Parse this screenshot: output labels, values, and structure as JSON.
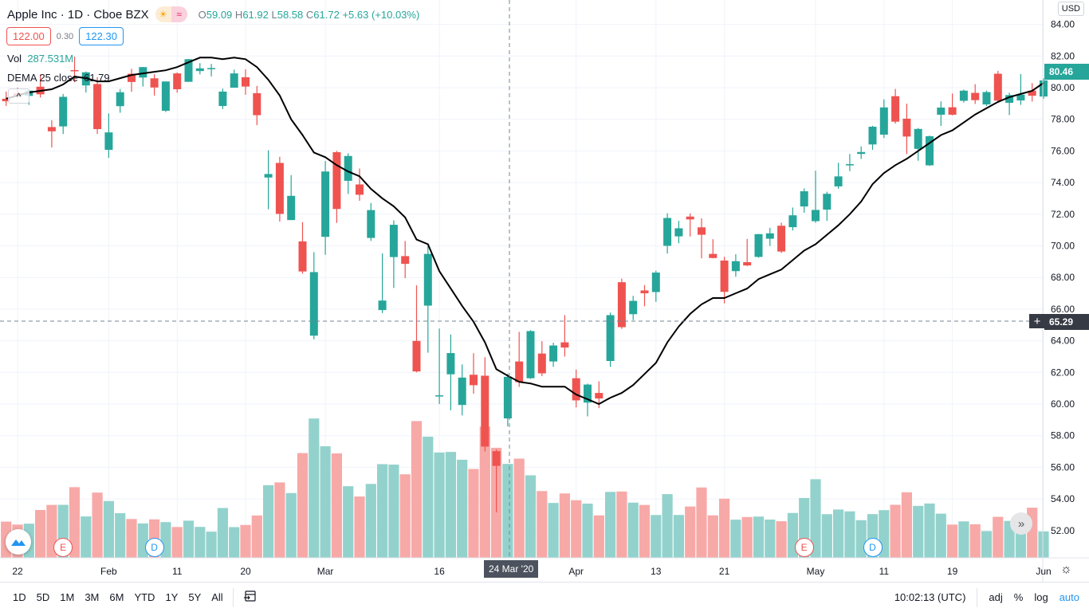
{
  "header": {
    "symbol": "Apple Inc",
    "interval": "1D",
    "exchange": "Cboe BZX",
    "separator": "·",
    "ohlc": {
      "o_label": "O",
      "o": "59.09",
      "h_label": "H",
      "h": "61.92",
      "l_label": "L",
      "l": "58.58",
      "c_label": "C",
      "c": "61.72",
      "change": "+5.63 (+10.03%)"
    },
    "sell_price": "122.00",
    "spread": "0.30",
    "buy_price": "122.30",
    "badge_icons": [
      "sun-icon",
      "wave-icon"
    ],
    "badge_glyphs": [
      "☀",
      "≈"
    ]
  },
  "indicators": {
    "vol_label": "Vol",
    "vol_value": "287.531M",
    "dema_label": "DEMA 25 close",
    "dema_value": "61.79",
    "collapse_glyph": "^"
  },
  "price_axis": {
    "currency": "USD",
    "last_price": "80.46",
    "crosshair_price": "65.29",
    "plus_glyph": "+"
  },
  "time_axis": {
    "crosshair_date": "24 Mar '20"
  },
  "events": [
    {
      "type": "E",
      "date": "2020-01-28"
    },
    {
      "type": "D",
      "date": "2020-02-07"
    },
    {
      "type": "E",
      "date": "2020-04-30"
    },
    {
      "type": "D",
      "date": "2020-05-08"
    }
  ],
  "colors": {
    "up": "#26a69a",
    "down": "#ef5350",
    "up_vol": "#93d2cc",
    "down_vol": "#f7a9a7",
    "dema": "#000000",
    "accent": "#2196f3"
  },
  "toolbar": {
    "ranges": [
      "1D",
      "5D",
      "1M",
      "3M",
      "6M",
      "YTD",
      "1Y",
      "5Y",
      "All"
    ],
    "goto_icon": "calendar-goto-icon",
    "time": "10:02:13 (UTC)",
    "adj": "adj",
    "percent": "%",
    "log": "log",
    "auto": "auto"
  },
  "chart_data": {
    "type": "candlestick",
    "title": "Apple Inc · 1D · Cboe BZX",
    "ylim": [
      50.5,
      84.8
    ],
    "yticks": [
      "52.00",
      "54.00",
      "56.00",
      "58.00",
      "60.00",
      "62.00",
      "64.00",
      "66.00",
      "68.00",
      "70.00",
      "72.00",
      "74.00",
      "76.00",
      "78.00",
      "80.00",
      "82.00",
      "84.00"
    ],
    "xticks": [
      {
        "label": "22",
        "date": "2020-01-22"
      },
      {
        "label": "Feb",
        "date": "2020-02-03"
      },
      {
        "label": "11",
        "date": "2020-02-11"
      },
      {
        "label": "20",
        "date": "2020-02-20"
      },
      {
        "label": "Mar",
        "date": "2020-03-02"
      },
      {
        "label": "16",
        "date": "2020-03-16"
      },
      {
        "label": "Apr",
        "date": "2020-04-01"
      },
      {
        "label": "13",
        "date": "2020-04-13"
      },
      {
        "label": "21",
        "date": "2020-04-21"
      },
      {
        "label": "May",
        "date": "2020-05-01"
      },
      {
        "label": "11",
        "date": "2020-05-11"
      },
      {
        "label": "19",
        "date": "2020-05-19"
      },
      {
        "label": "Jun",
        "date": "2020-06-01"
      }
    ],
    "grid": true,
    "candles": [
      [
        "2020-01-21",
        79.3,
        79.75,
        78.85,
        79.14,
        110.8,
        79.3
      ],
      [
        "2020-01-22",
        79.64,
        80.0,
        79.33,
        79.43,
        101.8,
        79.5
      ],
      [
        "2020-01-23",
        79.48,
        79.89,
        78.91,
        79.81,
        104.5,
        79.7
      ],
      [
        "2020-01-24",
        80.06,
        80.83,
        79.38,
        79.58,
        146.5,
        79.8
      ],
      [
        "2020-01-27",
        77.51,
        77.94,
        76.22,
        77.24,
        161.9,
        79.9
      ],
      [
        "2020-01-28",
        77.55,
        79.6,
        77.07,
        79.42,
        162.2,
        80.2
      ],
      [
        "2020-01-29",
        81.11,
        81.96,
        80.35,
        81.08,
        216.2,
        80.7
      ],
      [
        "2020-01-30",
        80.14,
        81.02,
        79.69,
        80.97,
        126.7,
        80.6
      ],
      [
        "2020-01-31",
        80.23,
        80.67,
        77.07,
        77.38,
        199.6,
        80.4
      ],
      [
        "2020-02-03",
        76.07,
        78.37,
        75.56,
        77.17,
        173.8,
        80.4
      ],
      [
        "2020-02-04",
        78.83,
        79.91,
        78.41,
        79.71,
        136.6,
        80.6
      ],
      [
        "2020-02-05",
        80.88,
        81.19,
        79.74,
        80.36,
        118.8,
        80.8
      ],
      [
        "2020-02-06",
        80.64,
        81.31,
        80.07,
        81.3,
        105.4,
        80.9
      ],
      [
        "2020-02-07",
        80.59,
        80.85,
        79.5,
        80.01,
        117.7,
        81.0
      ],
      [
        "2020-02-10",
        78.54,
        80.39,
        78.46,
        80.39,
        109.3,
        81.1
      ],
      [
        "2020-02-11",
        80.9,
        80.97,
        79.68,
        79.9,
        94.3,
        81.3
      ],
      [
        "2020-02-12",
        80.37,
        81.81,
        80.37,
        81.8,
        113.7,
        81.6
      ],
      [
        "2020-02-13",
        81.05,
        81.55,
        80.84,
        81.22,
        94.7,
        81.9
      ],
      [
        "2020-02-14",
        81.18,
        81.5,
        80.71,
        81.24,
        80.1,
        81.9
      ],
      [
        "2020-02-18",
        78.84,
        79.94,
        78.65,
        79.75,
        152.5,
        81.8
      ],
      [
        "2020-02-19",
        80.0,
        81.14,
        80.0,
        80.9,
        94.0,
        81.9
      ],
      [
        "2020-02-20",
        80.66,
        81.16,
        79.55,
        80.07,
        100.6,
        81.8
      ],
      [
        "2020-02-21",
        79.65,
        80.11,
        77.63,
        78.26,
        129.6,
        81.3
      ],
      [
        "2020-02-24",
        74.32,
        76.04,
        72.31,
        74.54,
        222.2,
        80.5
      ],
      [
        "2020-02-25",
        75.24,
        75.63,
        71.53,
        72.02,
        230.7,
        79.5
      ],
      [
        "2020-02-26",
        71.63,
        74.47,
        71.63,
        73.16,
        198.2,
        78.0
      ],
      [
        "2020-02-27",
        70.28,
        71.5,
        68.24,
        68.38,
        320.6,
        77.0
      ],
      [
        "2020-02-28",
        64.32,
        69.6,
        64.09,
        68.34,
        426.5,
        75.9
      ],
      [
        "2020-03-02",
        70.57,
        75.36,
        69.43,
        74.7,
        341.4,
        75.6
      ],
      [
        "2020-03-03",
        75.92,
        76.0,
        71.45,
        72.33,
        319.5,
        75.1
      ],
      [
        "2020-03-04",
        74.11,
        75.85,
        73.28,
        75.68,
        219.2,
        74.7
      ],
      [
        "2020-03-05",
        73.88,
        74.89,
        72.85,
        73.23,
        187.6,
        74.4
      ],
      [
        "2020-03-06",
        70.5,
        72.71,
        70.31,
        72.26,
        226.2,
        73.6
      ],
      [
        "2020-03-09",
        65.94,
        69.52,
        65.75,
        66.54,
        286.7,
        73.0
      ],
      [
        "2020-03-10",
        69.29,
        71.61,
        67.34,
        71.33,
        285.3,
        72.5
      ],
      [
        "2020-03-11",
        69.35,
        70.31,
        67.96,
        68.86,
        255.6,
        71.8
      ],
      [
        "2020-03-12",
        63.99,
        67.5,
        62.0,
        62.06,
        418.5,
        70.4
      ],
      [
        "2020-03-13",
        66.22,
        69.98,
        63.24,
        69.49,
        370.7,
        70.1
      ],
      [
        "2020-03-16",
        60.49,
        64.77,
        60.0,
        60.55,
        322.4,
        68.4
      ],
      [
        "2020-03-17",
        61.88,
        64.4,
        59.6,
        63.22,
        324.1,
        67.3
      ],
      [
        "2020-03-18",
        59.94,
        62.5,
        59.28,
        61.67,
        300.2,
        66.2
      ],
      [
        "2020-03-19",
        61.85,
        63.21,
        60.65,
        61.19,
        271.9,
        65.2
      ],
      [
        "2020-03-20",
        61.79,
        62.96,
        57.0,
        57.31,
        401.7,
        63.9
      ],
      [
        "2020-03-23",
        57.02,
        57.13,
        53.15,
        56.09,
        336.8,
        62.2
      ],
      [
        "2020-03-24",
        59.09,
        61.92,
        58.58,
        61.72,
        287.5,
        61.79
      ],
      [
        "2020-03-25",
        62.69,
        64.56,
        61.08,
        61.38,
        303.6,
        61.4
      ],
      [
        "2020-03-26",
        61.63,
        64.67,
        61.59,
        64.61,
        252.6,
        61.3
      ],
      [
        "2020-03-27",
        63.19,
        63.97,
        61.76,
        61.94,
        204.2,
        61.1
      ],
      [
        "2020-03-30",
        62.69,
        63.88,
        62.35,
        63.7,
        167.9,
        61.1
      ],
      [
        "2020-03-31",
        63.9,
        65.62,
        63.0,
        63.57,
        197.0,
        61.1
      ],
      [
        "2020-04-01",
        61.63,
        62.18,
        59.78,
        60.23,
        176.2,
        60.6
      ],
      [
        "2020-04-02",
        60.09,
        61.29,
        59.22,
        61.23,
        165.9,
        60.3
      ],
      [
        "2020-04-03",
        60.7,
        61.43,
        59.74,
        60.35,
        129.9,
        60.0
      ],
      [
        "2020-04-06",
        62.72,
        65.78,
        62.35,
        65.62,
        201.8,
        60.4
      ],
      [
        "2020-04-07",
        67.7,
        67.93,
        64.75,
        64.86,
        202.9,
        60.7
      ],
      [
        "2020-04-08",
        65.68,
        66.84,
        65.31,
        66.52,
        168.9,
        61.2
      ],
      [
        "2020-04-09",
        67.18,
        67.52,
        66.18,
        67.0,
        161.8,
        61.9
      ],
      [
        "2020-04-13",
        67.08,
        68.43,
        66.46,
        68.31,
        131.0,
        62.6
      ],
      [
        "2020-04-14",
        70.0,
        72.06,
        69.51,
        71.76,
        195.0,
        63.9
      ],
      [
        "2020-04-15",
        70.6,
        71.58,
        70.16,
        71.11,
        131.2,
        64.9
      ],
      [
        "2020-04-16",
        71.85,
        72.05,
        70.59,
        71.67,
        157.1,
        65.7
      ],
      [
        "2020-04-17",
        71.17,
        71.74,
        69.21,
        70.7,
        215.3,
        66.3
      ],
      [
        "2020-04-20",
        69.49,
        70.42,
        69.21,
        69.23,
        130.0,
        66.7
      ],
      [
        "2020-04-21",
        69.07,
        69.31,
        66.36,
        67.09,
        181.0,
        66.7
      ],
      [
        "2020-04-22",
        68.4,
        69.47,
        68.05,
        69.03,
        116.9,
        67.0
      ],
      [
        "2020-04-23",
        68.97,
        70.44,
        68.72,
        68.76,
        124.8,
        67.3
      ],
      [
        "2020-04-24",
        69.3,
        70.75,
        69.25,
        70.74,
        126.2,
        67.9
      ],
      [
        "2020-04-27",
        70.45,
        71.14,
        69.99,
        70.79,
        117.1,
        68.2
      ],
      [
        "2020-04-28",
        71.27,
        71.46,
        69.55,
        69.64,
        112.0,
        68.5
      ],
      [
        "2020-04-29",
        71.18,
        72.42,
        70.97,
        71.93,
        137.3,
        69.1
      ],
      [
        "2020-04-30",
        72.49,
        73.63,
        72.09,
        73.45,
        183.1,
        69.7
      ],
      [
        "2020-05-01",
        71.56,
        74.75,
        71.46,
        72.27,
        240.6,
        70.1
      ],
      [
        "2020-05-04",
        72.29,
        73.42,
        71.58,
        73.29,
        133.6,
        70.7
      ],
      [
        "2020-05-05",
        73.76,
        75.25,
        73.61,
        74.39,
        147.8,
        71.3
      ],
      [
        "2020-05-06",
        75.11,
        75.81,
        74.72,
        75.16,
        142.3,
        72.0
      ],
      [
        "2020-05-07",
        75.81,
        76.29,
        75.49,
        75.93,
        115.2,
        72.8
      ],
      [
        "2020-05-08",
        76.41,
        77.59,
        76.07,
        77.53,
        133.8,
        73.9
      ],
      [
        "2020-05-11",
        77.03,
        79.26,
        76.81,
        78.75,
        145.9,
        74.6
      ],
      [
        "2020-05-12",
        79.46,
        79.92,
        77.73,
        77.85,
        162.3,
        75.1
      ],
      [
        "2020-05-13",
        78.04,
        78.99,
        75.8,
        76.91,
        200.6,
        75.5
      ],
      [
        "2020-05-14",
        76.13,
        77.45,
        75.38,
        77.39,
        158.9,
        76.0
      ],
      [
        "2020-05-15",
        75.09,
        76.97,
        75.05,
        76.93,
        166.3,
        76.5
      ],
      [
        "2020-05-18",
        78.29,
        79.13,
        77.58,
        78.74,
        135.2,
        77.0
      ],
      [
        "2020-05-19",
        78.76,
        79.63,
        78.25,
        78.29,
        101.7,
        77.3
      ],
      [
        "2020-05-20",
        79.17,
        79.88,
        79.06,
        79.81,
        111.5,
        77.8
      ],
      [
        "2020-05-21",
        79.67,
        80.22,
        78.97,
        79.21,
        102.7,
        78.3
      ],
      [
        "2020-05-22",
        78.94,
        79.81,
        78.84,
        79.72,
        81.8,
        78.7
      ],
      [
        "2020-05-26",
        80.88,
        81.06,
        79.13,
        79.18,
        125.5,
        79.1
      ],
      [
        "2020-05-27",
        79.04,
        79.68,
        78.27,
        79.53,
        112.9,
        79.4
      ],
      [
        "2020-05-28",
        79.19,
        80.86,
        78.91,
        79.56,
        133.0,
        79.6
      ],
      [
        "2020-05-29",
        79.81,
        80.29,
        79.12,
        79.49,
        153.5,
        79.8
      ],
      [
        "2020-06-01",
        79.44,
        80.59,
        79.3,
        80.46,
        80.8,
        80.3
      ]
    ],
    "candle_fields": [
      "date",
      "open",
      "high",
      "low",
      "close",
      "volume_millions",
      "dema25"
    ]
  }
}
